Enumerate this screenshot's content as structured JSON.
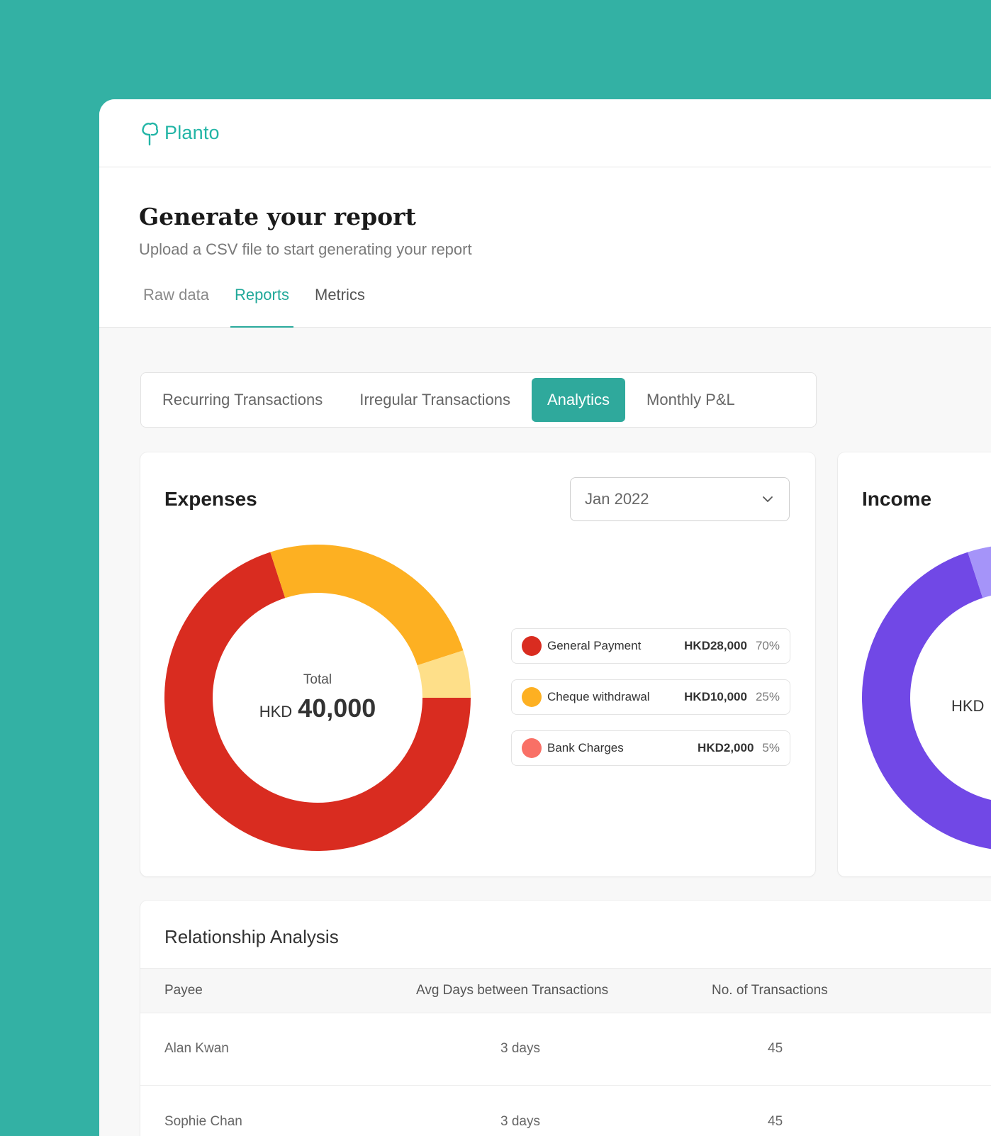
{
  "app": {
    "name": "Planto"
  },
  "header": {
    "title": "Generate your report",
    "subtitle": "Upload a CSV file to start generating your report",
    "tabs": [
      {
        "label": "Raw data",
        "active": false
      },
      {
        "label": "Reports",
        "active": true
      },
      {
        "label": "Metrics",
        "active": false
      }
    ]
  },
  "subnav": {
    "items": [
      {
        "label": "Recurring Transactions",
        "active": false
      },
      {
        "label": "Irregular Transactions",
        "active": false
      },
      {
        "label": "Analytics",
        "active": true
      },
      {
        "label": "Monthly P&L",
        "active": false
      }
    ]
  },
  "expenses": {
    "title": "Expenses",
    "period": "Jan 2022",
    "total_label": "Total",
    "total_currency": "HKD",
    "total_value": "40,000",
    "legend": [
      {
        "label": "General Payment",
        "amount": "HKD28,000",
        "pct": "70%",
        "color": "#D92C20"
      },
      {
        "label": "Cheque withdrawal",
        "amount": "HKD10,000",
        "pct": "25%",
        "color": "#FDB022"
      },
      {
        "label": "Bank Charges",
        "amount": "HKD2,000",
        "pct": "5%",
        "color": "#F97066"
      }
    ]
  },
  "income": {
    "title": "Income",
    "total_currency": "HKD"
  },
  "chart_data": [
    {
      "type": "pie",
      "categories": [
        "General Payment",
        "Cheque withdrawal",
        "Bank Charges"
      ],
      "values": [
        70,
        25,
        5
      ],
      "colors": [
        "#D92C20",
        "#FDB022",
        "#FEDF89"
      ]
    },
    {
      "type": "pie",
      "categories": [
        "",
        "",
        ""
      ],
      "values": [
        70,
        20,
        10
      ],
      "colors": [
        "#7148E6",
        "#A594F9",
        "#D9D6FE"
      ]
    }
  ],
  "relationship": {
    "title": "Relationship Analysis",
    "columns": [
      "Payee",
      "Avg Days between Transactions",
      "No. of Transactions"
    ],
    "rows": [
      {
        "payee": "Alan Kwan",
        "avg_days": "3 days",
        "count": "45"
      },
      {
        "payee": "Sophie Chan",
        "avg_days": "3 days",
        "count": "45"
      }
    ]
  }
}
